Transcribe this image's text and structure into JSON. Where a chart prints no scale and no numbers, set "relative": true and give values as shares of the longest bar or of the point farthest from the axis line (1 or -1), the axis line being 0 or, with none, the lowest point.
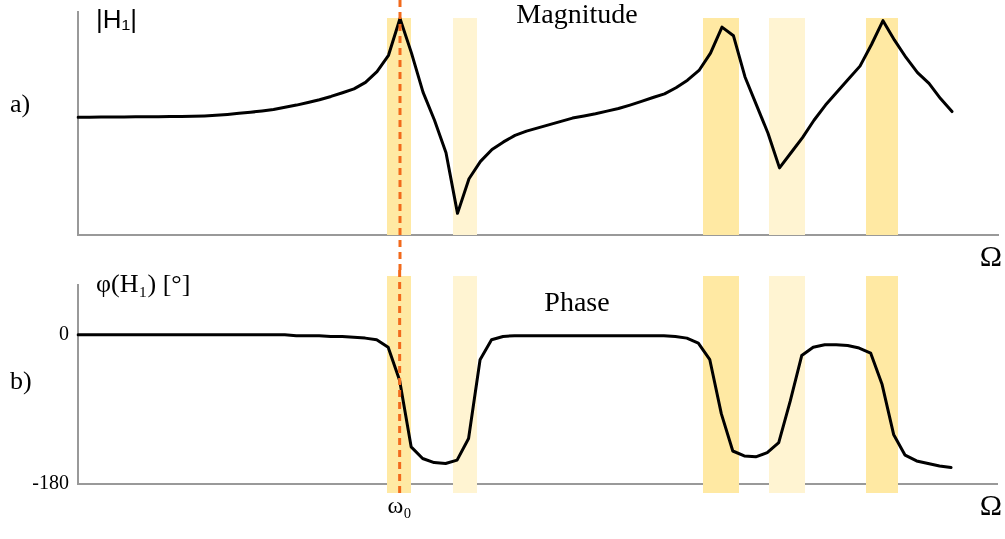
{
  "chart_data": [
    {
      "type": "line",
      "title": "Magnitude",
      "ylabel": "|H₁|",
      "xlabel": "Ω",
      "relative": true,
      "tick_labels": false,
      "grid": false,
      "legend": false,
      "marker": "none",
      "line_style": "solid",
      "annotations": [
        "a)"
      ],
      "categories": [
        null,
        null,
        null,
        null,
        null,
        null,
        null,
        null,
        null,
        null,
        null,
        null,
        null,
        null,
        null,
        null,
        null,
        null,
        null,
        null,
        null,
        null,
        null,
        null,
        null,
        null,
        null,
        null,
        null,
        null,
        null,
        null,
        null,
        null,
        null,
        null,
        null,
        null,
        null,
        null,
        null,
        null,
        null,
        null,
        null,
        null,
        null,
        null,
        null,
        null,
        null,
        null,
        null,
        null,
        null,
        null,
        null,
        null,
        null,
        null,
        null,
        null,
        null,
        null,
        null,
        null,
        null,
        null,
        null,
        null,
        null,
        null,
        null,
        null,
        null,
        null,
        null,
        null,
        null,
        null,
        null
      ],
      "series": [
        {
          "color": "#000000",
          "values": [
            0.544,
            0.544,
            0.545,
            0.545,
            0.545,
            0.546,
            0.546,
            0.546,
            0.547,
            0.547,
            0.548,
            0.55,
            0.553,
            0.557,
            0.562,
            0.567,
            0.573,
            0.58,
            0.59,
            0.6,
            0.612,
            0.625,
            0.64,
            0.657,
            0.675,
            0.705,
            0.755,
            0.83,
            1.0,
            0.84,
            0.66,
            0.53,
            0.38,
            0.1,
            0.26,
            0.34,
            0.395,
            0.43,
            0.46,
            0.48,
            0.495,
            0.51,
            0.525,
            0.54,
            0.55,
            0.56,
            0.572,
            0.584,
            0.6,
            0.617,
            0.635,
            0.652,
            0.68,
            0.715,
            0.76,
            0.84,
            0.96,
            0.92,
            0.73,
            0.6,
            0.47,
            0.31,
            0.38,
            0.45,
            0.53,
            0.6,
            0.66,
            0.72,
            0.78,
            0.88,
            0.99,
            0.9,
            0.82,
            0.75,
            0.7,
            0.63,
            0.57,
            null,
            null,
            null,
            null
          ]
        }
      ]
    },
    {
      "type": "line",
      "title": "Phase",
      "ylabel": "φ(H₁) [°]",
      "xlabel": "Ω",
      "ylim": [
        -180,
        60
      ],
      "yticks": [
        -180,
        0
      ],
      "grid": false,
      "legend": false,
      "marker": "none",
      "line_style": "solid",
      "annotations": [
        "b)"
      ],
      "categories": [
        null,
        null,
        null,
        null,
        null,
        null,
        null,
        null,
        null,
        null,
        null,
        null,
        null,
        null,
        null,
        null,
        null,
        null,
        null,
        null,
        null,
        null,
        null,
        null,
        null,
        null,
        null,
        null,
        "ω₀",
        null,
        null,
        null,
        null,
        null,
        null,
        null,
        null,
        null,
        null,
        null,
        null,
        null,
        null,
        null,
        null,
        null,
        null,
        null,
        null,
        null,
        null,
        null,
        null,
        null,
        null,
        null,
        null,
        null,
        null,
        null,
        null,
        null,
        null,
        null,
        null,
        null,
        null,
        null,
        null,
        null,
        null,
        null,
        null,
        null,
        null,
        null,
        null,
        null,
        null,
        null,
        null
      ],
      "series": [
        {
          "color": "#000000",
          "values": [
            0,
            0,
            0,
            0,
            0,
            0,
            0,
            0,
            0,
            0,
            0,
            0,
            0,
            0,
            0,
            0,
            0,
            0,
            0,
            -1,
            -1,
            -1,
            -2,
            -2,
            -3,
            -4,
            -6,
            -15,
            -55,
            -135,
            -149,
            -154,
            -155,
            -151,
            -125,
            -30,
            -6,
            -2,
            -1,
            -1,
            -1,
            -1,
            -1,
            -1,
            -1,
            -1,
            -1,
            -1,
            -1,
            -1,
            -1,
            -1,
            -2,
            -4,
            -10,
            -30,
            -95,
            -140,
            -146,
            -147,
            -142,
            -130,
            -80,
            -25,
            -15,
            -12,
            -12,
            -13,
            -16,
            -22,
            -60,
            -120,
            -145,
            -152,
            -155,
            -158,
            -160,
            null,
            null,
            null,
            null
          ]
        }
      ],
      "ref_lines": [
        {
          "axis": "x",
          "value": "ω₀",
          "color": "#f26a1b",
          "line_style": "dashed"
        }
      ]
    }
  ]
}
